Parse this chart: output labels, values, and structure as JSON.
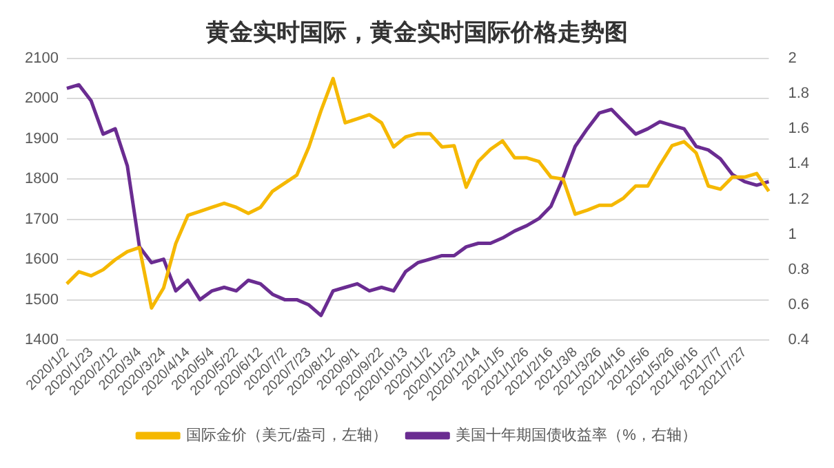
{
  "chart_data": {
    "type": "line",
    "title": "黄金实时国际，黄金实时国际价格走势图",
    "categories": [
      "2020/1/2",
      null,
      "2020/1/23",
      null,
      "2020/2/12",
      null,
      "2020/3/4",
      null,
      "2020/3/24",
      null,
      "2020/4/14",
      null,
      "2020/5/4",
      null,
      "2020/5/22",
      null,
      "2020/6/12",
      null,
      "2020/7/2",
      null,
      "2020/7/23",
      null,
      "2020/8/12",
      null,
      "2020/9/1",
      null,
      "2020/9/22",
      null,
      "2020/10/13",
      null,
      "2020/11/2",
      null,
      "2020/11/23",
      null,
      "2020/12/14",
      null,
      "2021/1/5",
      null,
      "2021/1/26",
      null,
      "2021/2/16",
      null,
      "2021/3/8",
      null,
      "2021/3/26",
      null,
      "2021/4/16",
      null,
      "2021/5/6",
      null,
      "2021/5/26",
      null,
      "2021/6/16",
      null,
      "2021/7/7",
      null,
      "2021/7/27",
      null,
      null
    ],
    "series": [
      {
        "name": "国际金价（美元/盎司，左轴）",
        "color": "#f5b800",
        "values": [
          1540,
          1570,
          1560,
          1575,
          1600,
          1620,
          1630,
          1480,
          1530,
          1640,
          1710,
          1720,
          1730,
          1740,
          1730,
          1715,
          1730,
          1770,
          1790,
          1810,
          1880,
          1970,
          2050,
          1940,
          1950,
          1960,
          1940,
          1880,
          1905,
          1913,
          1913,
          1880,
          1883,
          1780,
          1844,
          1874,
          1895,
          1853,
          1853,
          1844,
          1805,
          1800,
          1713,
          1723,
          1735,
          1735,
          1753,
          1783,
          1783,
          1835,
          1883,
          1893,
          1865,
          1783,
          1775,
          1805,
          1805,
          1814,
          1770
        ]
      },
      {
        "name": "美国十年期国债收益率（%，右轴）",
        "color": "#6a2c91",
        "axis": "y2",
        "values": [
          1.83,
          1.85,
          1.76,
          1.57,
          1.6,
          1.39,
          0.93,
          0.84,
          0.86,
          0.68,
          0.74,
          0.63,
          0.68,
          0.7,
          0.68,
          0.74,
          0.72,
          0.66,
          0.63,
          0.63,
          0.6,
          0.54,
          0.68,
          0.7,
          0.72,
          0.68,
          0.7,
          0.68,
          0.79,
          0.84,
          0.86,
          0.88,
          0.88,
          0.93,
          0.95,
          0.95,
          0.98,
          1.02,
          1.05,
          1.09,
          1.16,
          1.32,
          1.5,
          1.6,
          1.69,
          1.71,
          1.64,
          1.57,
          1.6,
          1.64,
          1.62,
          1.6,
          1.5,
          1.48,
          1.43,
          1.34,
          1.3,
          1.28,
          1.3
        ]
      }
    ],
    "ylim": [
      1400,
      2100
    ],
    "yticks": [
      1400,
      1500,
      1600,
      1700,
      1800,
      1900,
      2000,
      2100
    ],
    "y2lim": [
      0.4,
      2
    ],
    "y2ticks": [
      0.4,
      0.6,
      0.8,
      1,
      1.2,
      1.4,
      1.6,
      1.8,
      2
    ],
    "grid": "y",
    "legend": "bottom",
    "marker": "none",
    "line_style": "solid"
  }
}
